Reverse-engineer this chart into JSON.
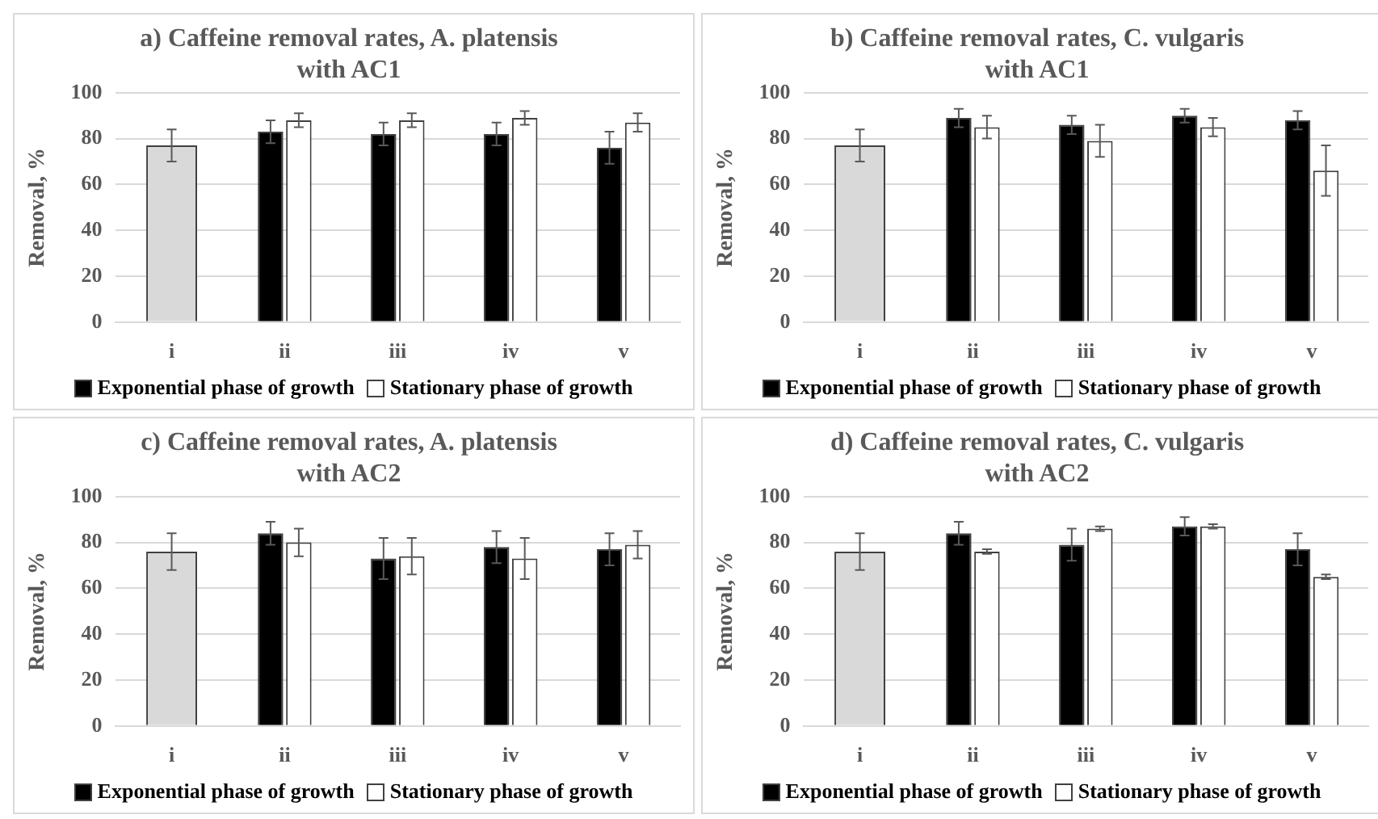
{
  "chart_data": [
    {
      "type": "bar",
      "title": "a) Caffeine removal rates, A. platensis with AC1",
      "ylabel": "Removal, %",
      "categories": [
        "i",
        "ii",
        "iii",
        "iv",
        "v"
      ],
      "ylim": [
        0,
        100
      ],
      "yticks": [
        0,
        20,
        40,
        60,
        80,
        100
      ],
      "grid": "y",
      "legend": "bottom",
      "series": [
        {
          "color": "#d9d9d9",
          "values": [
            77,
            null,
            null,
            null,
            null
          ],
          "errors": [
            7,
            null,
            null,
            null,
            null
          ]
        },
        {
          "name": "Exponential phase of growth",
          "color": "#000000",
          "values": [
            null,
            83,
            82,
            82,
            76
          ],
          "errors": [
            null,
            5,
            5,
            5,
            7
          ]
        },
        {
          "name": "Stationary phase of growth",
          "color": "#ffffff",
          "values": [
            null,
            88,
            88,
            89,
            87
          ],
          "errors": [
            null,
            3,
            3,
            3,
            4
          ]
        }
      ]
    },
    {
      "type": "bar",
      "title": "b) Caffeine removal rates, C. vulgaris with AC1",
      "ylabel": "Removal, %",
      "categories": [
        "i",
        "ii",
        "iii",
        "iv",
        "v"
      ],
      "ylim": [
        0,
        100
      ],
      "yticks": [
        0,
        20,
        40,
        60,
        80,
        100
      ],
      "grid": "y",
      "legend": "bottom",
      "series": [
        {
          "color": "#d9d9d9",
          "values": [
            77,
            null,
            null,
            null,
            null
          ],
          "errors": [
            7,
            null,
            null,
            null,
            null
          ]
        },
        {
          "name": "Exponential phase of growth",
          "color": "#000000",
          "values": [
            null,
            89,
            86,
            90,
            88
          ],
          "errors": [
            null,
            4,
            4,
            3,
            4
          ]
        },
        {
          "name": "Stationary phase of growth",
          "color": "#ffffff",
          "values": [
            null,
            85,
            79,
            85,
            66
          ],
          "errors": [
            null,
            5,
            7,
            4,
            11
          ]
        }
      ]
    },
    {
      "type": "bar",
      "title": "c) Caffeine removal rates, A. platensis with AC2",
      "ylabel": "Removal, %",
      "categories": [
        "i",
        "ii",
        "iii",
        "iv",
        "v"
      ],
      "ylim": [
        0,
        100
      ],
      "yticks": [
        0,
        20,
        40,
        60,
        80,
        100
      ],
      "grid": "y",
      "legend": "bottom",
      "series": [
        {
          "color": "#d9d9d9",
          "values": [
            76,
            null,
            null,
            null,
            null
          ],
          "errors": [
            8,
            null,
            null,
            null,
            null
          ]
        },
        {
          "name": "Exponential phase of growth",
          "color": "#000000",
          "values": [
            null,
            84,
            73,
            78,
            77
          ],
          "errors": [
            null,
            5,
            9,
            7,
            7
          ]
        },
        {
          "name": "Stationary phase of growth",
          "color": "#ffffff",
          "values": [
            null,
            80,
            74,
            73,
            79
          ],
          "errors": [
            null,
            6,
            8,
            9,
            6
          ]
        }
      ]
    },
    {
      "type": "bar",
      "title": "d) Caffeine removal rates, C. vulgaris with AC2",
      "ylabel": "Removal, %",
      "categories": [
        "i",
        "ii",
        "iii",
        "iv",
        "v"
      ],
      "ylim": [
        0,
        100
      ],
      "yticks": [
        0,
        20,
        40,
        60,
        80,
        100
      ],
      "grid": "y",
      "legend": "bottom",
      "series": [
        {
          "color": "#d9d9d9",
          "values": [
            76,
            null,
            null,
            null,
            null
          ],
          "errors": [
            8,
            null,
            null,
            null,
            null
          ]
        },
        {
          "name": "Exponential phase of growth",
          "color": "#000000",
          "values": [
            null,
            84,
            79,
            87,
            77
          ],
          "errors": [
            null,
            5,
            7,
            4,
            7
          ]
        },
        {
          "name": "Stationary phase of growth",
          "color": "#ffffff",
          "values": [
            null,
            76,
            86,
            87,
            65
          ],
          "errors": [
            null,
            1,
            1,
            1,
            1
          ]
        }
      ]
    }
  ]
}
